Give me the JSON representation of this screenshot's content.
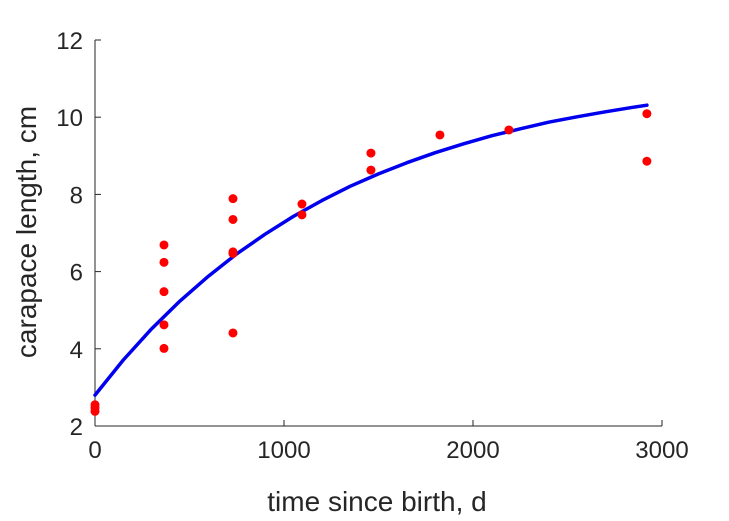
{
  "chart_data": {
    "type": "scatter",
    "title": "",
    "xlabel": "time since birth, d",
    "ylabel": "carapace length, cm",
    "xlim": [
      0,
      3000
    ],
    "ylim": [
      2,
      12
    ],
    "xticks": [
      0,
      1000,
      2000,
      3000
    ],
    "yticks": [
      2,
      4,
      6,
      8,
      10,
      12
    ],
    "grid": false,
    "legend": "none",
    "colors": {
      "points": "#ff0000",
      "fit": "#0000ee",
      "axes": "#262626"
    },
    "series": [
      {
        "type": "scatter",
        "points": [
          [
            0,
            2.38
          ],
          [
            0,
            2.47
          ],
          [
            0,
            2.55
          ],
          [
            365,
            4.01
          ],
          [
            365,
            4.62
          ],
          [
            365,
            5.48
          ],
          [
            365,
            6.24
          ],
          [
            365,
            6.69
          ],
          [
            730,
            4.41
          ],
          [
            730,
            6.47
          ],
          [
            730,
            6.51
          ],
          [
            730,
            7.35
          ],
          [
            730,
            7.89
          ],
          [
            1095,
            7.47
          ],
          [
            1095,
            7.75
          ],
          [
            1460,
            8.63
          ],
          [
            1460,
            9.07
          ],
          [
            1825,
            9.54
          ],
          [
            2190,
            9.67
          ],
          [
            2920,
            8.86
          ],
          [
            2920,
            10.09
          ]
        ]
      },
      {
        "type": "line",
        "x": [
          0,
          150,
          300,
          450,
          600,
          750,
          900,
          1050,
          1200,
          1350,
          1500,
          1650,
          1800,
          1950,
          2100,
          2250,
          2400,
          2550,
          2700,
          2850,
          2920
        ],
        "y": [
          2.8,
          3.71,
          4.52,
          5.24,
          5.88,
          6.46,
          6.97,
          7.43,
          7.84,
          8.21,
          8.53,
          8.82,
          9.08,
          9.31,
          9.52,
          9.7,
          9.87,
          10.01,
          10.14,
          10.26,
          10.31
        ]
      }
    ]
  }
}
